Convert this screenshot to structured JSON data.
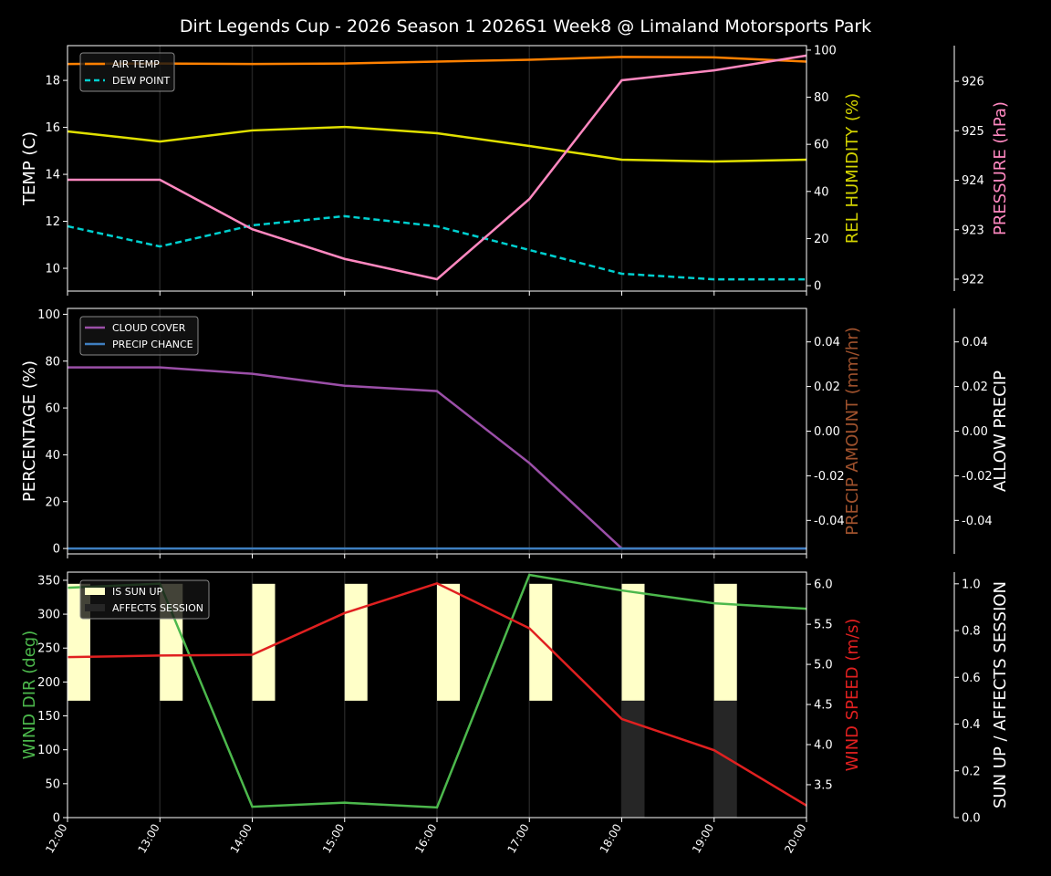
{
  "chart_data": {
    "title": "Dirt Legends Cup - 2026 Season 1 2026S1 Week8 @ Limaland Motorsports Park",
    "type": "line",
    "x": [
      "12:00",
      "13:00",
      "14:00",
      "15:00",
      "16:00",
      "17:00",
      "18:00",
      "19:00",
      "20:00"
    ],
    "grid": "vertical",
    "panels": [
      {
        "axes": [
          {
            "side": "left",
            "label": "TEMP (C)",
            "color": "#ffffff",
            "range": [
              9.03,
              19.48
            ],
            "ticks": [
              10,
              12,
              14,
              16,
              18
            ]
          },
          {
            "side": "right",
            "label": "REL HUMIDITY (%)",
            "color": "#d4d400",
            "range": [
              -2.3,
              101.9
            ],
            "ticks": [
              0,
              20,
              40,
              60,
              80,
              100
            ]
          },
          {
            "side": "far",
            "label": "PRESSURE (hPa)",
            "color": "#ff88c0",
            "range": [
              921.76,
              926.72
            ],
            "ticks": [
              922,
              923,
              924,
              925,
              926
            ]
          }
        ],
        "series": [
          {
            "name": "AIR TEMP",
            "axis": 0,
            "color": "#ff8000",
            "dash": false,
            "legend": true,
            "values": [
              18.7,
              18.72,
              18.7,
              18.72,
              18.8,
              18.88,
              19.0,
              18.98,
              18.8
            ]
          },
          {
            "name": "DEW POINT",
            "axis": 0,
            "color": "#00d0d0",
            "dash": true,
            "legend": true,
            "values": [
              11.79,
              10.93,
              11.83,
              12.22,
              11.79,
              10.78,
              9.77,
              9.53,
              9.53
            ]
          },
          {
            "axis": 1,
            "color": "#e0e000",
            "dash": false,
            "legend": false,
            "values": [
              65.5,
              61.2,
              65.9,
              67.4,
              64.7,
              59.3,
              53.5,
              52.7,
              53.5
            ]
          },
          {
            "axis": 2,
            "color": "#ff88c0",
            "dash": false,
            "legend": false,
            "values": [
              924.01,
              924.01,
              923.01,
              922.41,
              922.0,
              923.62,
              926.02,
              926.22,
              926.52
            ]
          }
        ]
      },
      {
        "axes": [
          {
            "side": "left",
            "label": "PERCENTAGE (%)",
            "color": "#ffffff",
            "range": [
              -2.3,
              102.5
            ],
            "ticks": [
              0,
              20,
              40,
              60,
              80,
              100
            ]
          },
          {
            "side": "right",
            "label": "PRECIP AMOUNT (mm/hr)",
            "color": "#a0522d",
            "range": [
              -0.055,
              0.055
            ],
            "ticks": [
              -0.04,
              -0.02,
              0.0,
              0.02,
              0.04
            ]
          },
          {
            "side": "far",
            "label": "ALLOW PRECIP",
            "color": "#ffffff",
            "range": [
              -0.055,
              0.055
            ],
            "ticks": [
              -0.04,
              -0.02,
              0.0,
              0.02,
              0.04
            ]
          }
        ],
        "series": [
          {
            "name": "CLOUD COVER",
            "axis": 0,
            "color": "#9b4fa8",
            "dash": false,
            "legend": true,
            "values": [
              77.3,
              77.3,
              74.6,
              69.5,
              67.2,
              36.5,
              0,
              0,
              0
            ]
          },
          {
            "name": "PRECIP CHANCE",
            "axis": 0,
            "color": "#3f7fc0",
            "dash": false,
            "legend": true,
            "values": [
              0,
              0,
              0,
              0,
              0,
              0,
              0,
              0,
              0
            ]
          }
        ]
      },
      {
        "axes": [
          {
            "side": "left",
            "label": "WIND DIR (deg)",
            "color": "#4cb84c",
            "range": [
              0,
              362
            ],
            "ticks": [
              0,
              50,
              100,
              150,
              200,
              250,
              300,
              350
            ]
          },
          {
            "side": "right",
            "label": "WIND SPEED (m/s)",
            "color": "#e02020",
            "range": [
              3.09,
              6.15
            ],
            "ticks": [
              3.5,
              4.0,
              4.5,
              5.0,
              5.5,
              6.0
            ]
          },
          {
            "side": "far",
            "label": "SUN UP / AFFECTS SESSION",
            "color": "#ffffff",
            "range": [
              0,
              1.05
            ],
            "ticks": [
              0.0,
              0.2,
              0.4,
              0.6,
              0.8,
              1.0
            ]
          }
        ],
        "bars": [
          {
            "name": "IS SUN UP",
            "axis": 2,
            "color": "#ffffc8",
            "values": [
              1,
              1,
              1,
              1,
              1,
              1,
              1,
              1
            ],
            "legend": true
          },
          {
            "name": "AFFECTS SESSION",
            "axis": 2,
            "color": "#262626",
            "values": [
              0,
              0,
              0,
              0,
              0,
              0,
              1,
              1
            ],
            "legend": true
          }
        ],
        "series": [
          {
            "axis": 0,
            "color": "#4cb84c",
            "dash": false,
            "legend": false,
            "values": [
              339,
              345,
              16,
              22,
              15,
              358,
              335,
              316,
              308
            ]
          },
          {
            "axis": 1,
            "color": "#e02020",
            "dash": false,
            "legend": false,
            "values": [
              5.09,
              5.11,
              5.12,
              5.64,
              6.01,
              5.45,
              4.32,
              3.93,
              3.24
            ]
          }
        ]
      }
    ]
  }
}
